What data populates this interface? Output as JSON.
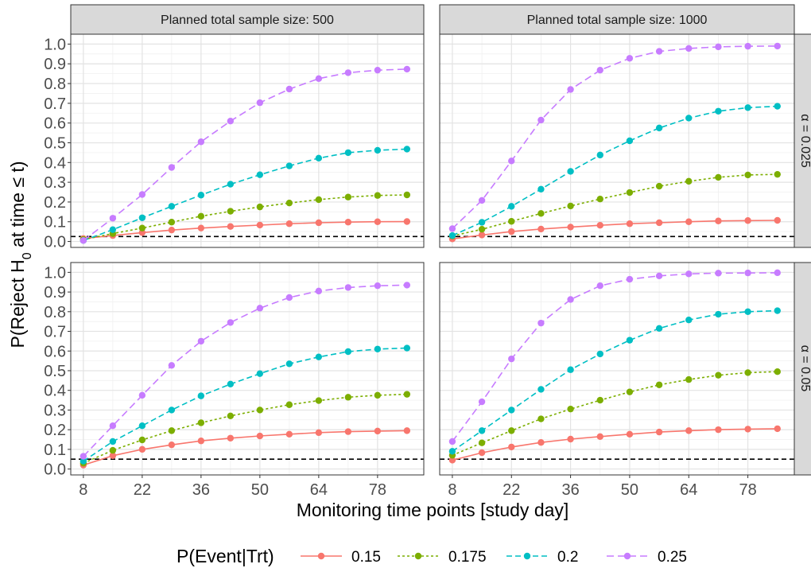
{
  "chart_data": {
    "type": "line",
    "x": [
      8,
      15,
      22,
      29,
      36,
      43,
      50,
      57,
      64,
      71,
      78,
      85
    ],
    "xlabel": "Monitoring time points [study day]",
    "ylabel": "P(Reject H",
    "ylabel_sub": "0",
    "ylabel_suffix": " at time ≤ t)",
    "x_ticks": [
      8,
      22,
      36,
      50,
      64,
      78
    ],
    "x_tick_labels": [
      "8",
      "22",
      "36",
      "50",
      "64",
      "78"
    ],
    "xlim": [
      5,
      89
    ],
    "ylim": [
      -0.03,
      1.05
    ],
    "y_ticks": [
      0.0,
      0.1,
      0.2,
      0.3,
      0.4,
      0.5,
      0.6,
      0.7,
      0.8,
      0.9,
      1.0
    ],
    "y_tick_labels": [
      "0.0",
      "0.1",
      "0.2",
      "0.3",
      "0.4",
      "0.5",
      "0.6",
      "0.7",
      "0.8",
      "0.9",
      "1.0"
    ],
    "grid": true,
    "legend": {
      "title": "P(Event|Trt)",
      "position": "bottom",
      "entries": [
        "0.15",
        "0.175",
        "0.2",
        "0.25"
      ]
    },
    "series_styles": [
      {
        "color": "#F8766D",
        "dash": ""
      },
      {
        "color": "#7CAE00",
        "dash": "3,3"
      },
      {
        "color": "#00BFC4",
        "dash": "7,4"
      },
      {
        "color": "#C77CFF",
        "dash": "9,5"
      }
    ],
    "column_strips": [
      "Planned total sample size: 500",
      "Planned total sample size: 1000"
    ],
    "row_strips": [
      "α = 0.025",
      "α = 0.05"
    ],
    "panels": [
      {
        "alpha_line": 0.025,
        "series": [
          {
            "name": "0.15",
            "values": [
              0.015,
              0.03,
              0.045,
              0.058,
              0.068,
              0.076,
              0.083,
              0.09,
              0.095,
              0.098,
              0.1,
              0.101
            ]
          },
          {
            "name": "0.175",
            "values": [
              0.01,
              0.04,
              0.068,
              0.098,
              0.128,
              0.153,
              0.175,
              0.195,
              0.212,
              0.225,
              0.233,
              0.236
            ]
          },
          {
            "name": "0.2",
            "values": [
              0.005,
              0.06,
              0.12,
              0.178,
              0.235,
              0.29,
              0.338,
              0.383,
              0.422,
              0.45,
              0.462,
              0.468
            ]
          },
          {
            "name": "0.25",
            "values": [
              0.005,
              0.118,
              0.238,
              0.375,
              0.505,
              0.61,
              0.703,
              0.772,
              0.825,
              0.855,
              0.868,
              0.873
            ]
          }
        ]
      },
      {
        "alpha_line": 0.025,
        "series": [
          {
            "name": "0.15",
            "values": [
              0.013,
              0.033,
              0.05,
              0.063,
              0.073,
              0.082,
              0.09,
              0.095,
              0.1,
              0.104,
              0.106,
              0.107
            ]
          },
          {
            "name": "0.175",
            "values": [
              0.028,
              0.062,
              0.102,
              0.142,
              0.18,
              0.215,
              0.248,
              0.28,
              0.305,
              0.325,
              0.337,
              0.34
            ]
          },
          {
            "name": "0.2",
            "values": [
              0.03,
              0.097,
              0.178,
              0.265,
              0.355,
              0.438,
              0.51,
              0.575,
              0.625,
              0.66,
              0.678,
              0.685
            ]
          },
          {
            "name": "0.25",
            "values": [
              0.065,
              0.208,
              0.408,
              0.615,
              0.77,
              0.868,
              0.928,
              0.963,
              0.978,
              0.986,
              0.989,
              0.99
            ]
          }
        ]
      },
      {
        "alpha_line": 0.05,
        "series": [
          {
            "name": "0.15",
            "values": [
              0.02,
              0.068,
              0.1,
              0.123,
              0.143,
              0.157,
              0.168,
              0.177,
              0.185,
              0.19,
              0.193,
              0.195
            ]
          },
          {
            "name": "0.175",
            "values": [
              0.03,
              0.095,
              0.148,
              0.195,
              0.235,
              0.27,
              0.3,
              0.327,
              0.348,
              0.365,
              0.375,
              0.38
            ]
          },
          {
            "name": "0.2",
            "values": [
              0.04,
              0.14,
              0.22,
              0.3,
              0.372,
              0.432,
              0.485,
              0.535,
              0.57,
              0.597,
              0.61,
              0.615
            ]
          },
          {
            "name": "0.25",
            "values": [
              0.065,
              0.22,
              0.375,
              0.527,
              0.65,
              0.745,
              0.818,
              0.872,
              0.905,
              0.923,
              0.932,
              0.935
            ]
          }
        ]
      },
      {
        "alpha_line": 0.05,
        "series": [
          {
            "name": "0.15",
            "values": [
              0.045,
              0.083,
              0.112,
              0.135,
              0.152,
              0.165,
              0.177,
              0.188,
              0.195,
              0.2,
              0.203,
              0.205
            ]
          },
          {
            "name": "0.175",
            "values": [
              0.07,
              0.133,
              0.195,
              0.255,
              0.305,
              0.35,
              0.392,
              0.428,
              0.455,
              0.477,
              0.49,
              0.495
            ]
          },
          {
            "name": "0.2",
            "values": [
              0.09,
              0.195,
              0.3,
              0.405,
              0.505,
              0.585,
              0.655,
              0.715,
              0.758,
              0.787,
              0.8,
              0.805
            ]
          },
          {
            "name": "0.25",
            "values": [
              0.14,
              0.342,
              0.56,
              0.742,
              0.862,
              0.932,
              0.965,
              0.982,
              0.992,
              0.996,
              0.997,
              0.998
            ]
          }
        ]
      }
    ]
  }
}
